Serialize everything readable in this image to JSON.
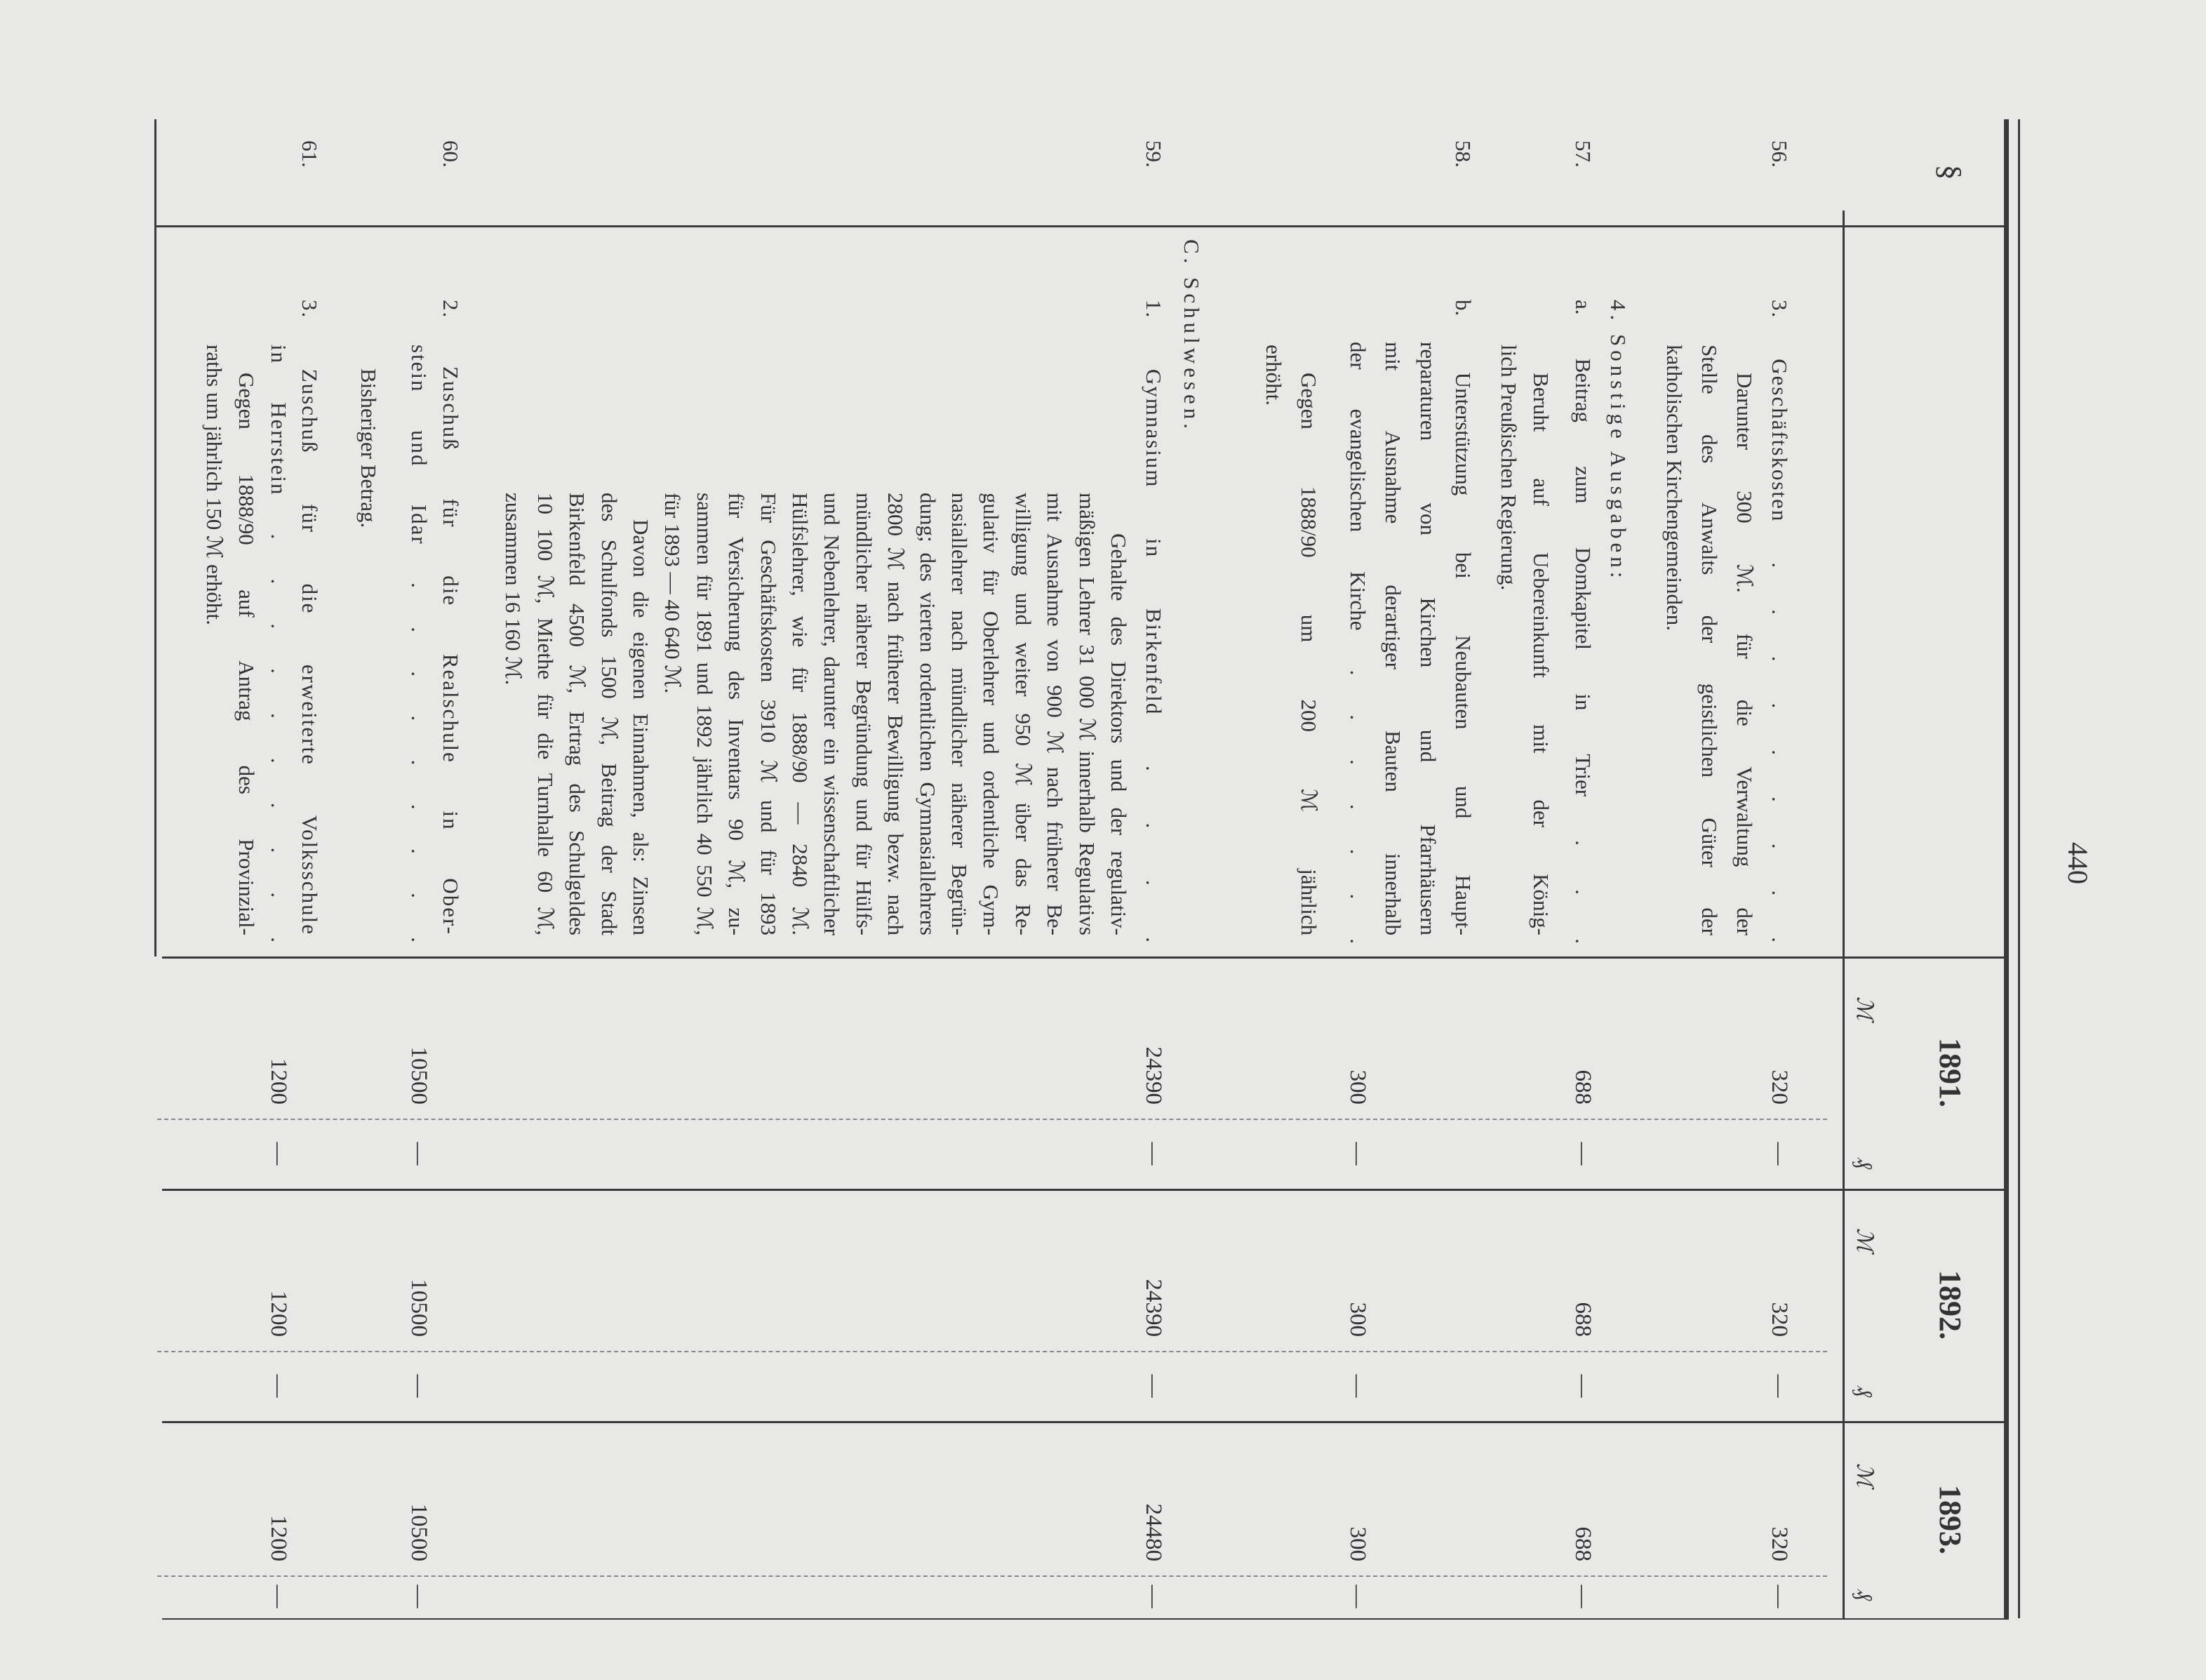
{
  "page_number": "440",
  "header": {
    "section_symbol": "§",
    "years": [
      "1891.",
      "1892.",
      "1893."
    ],
    "mark_symbol": "ℳ",
    "pfennig_symbol": "₰"
  },
  "entries": [
    {
      "section": "56.",
      "lines": [
        "3. Geschäftskosten . . . . . . . . .",
        "Darunter 300 ℳ. für die Verwaltung der",
        "Stelle des Anwalts der geistlichen Güter der",
        "katholischen Kirchengemeinden."
      ],
      "amounts": [
        "320",
        "—",
        "320",
        "—",
        "320",
        "—"
      ]
    },
    {
      "section": "",
      "lines": [
        "4. Sonstige Ausgaben:"
      ],
      "amounts": []
    },
    {
      "section": "57.",
      "lines": [
        "a. Beitrag zum Domkapitel in Trier . . .",
        "Beruht auf Uebereinkunft mit der König-",
        "lich Preußischen Regierung."
      ],
      "amounts": [
        "688",
        "—",
        "688",
        "—",
        "688",
        "—"
      ]
    },
    {
      "section": "58.",
      "lines": [
        "b. Unterstützung bei Neubauten und Haupt-",
        "reparaturen von Kirchen und Pfarrhäusern",
        "mit Ausnahme derartiger Bauten innerhalb",
        "der evangelischen Kirche . . . . . . .",
        "Gegen 1888/90 um 200 ℳ jährlich",
        "erhöht."
      ],
      "amounts": [
        "300",
        "—",
        "300",
        "—",
        "300",
        "—"
      ]
    },
    {
      "section": "",
      "lines": [
        "C. Schulwesen."
      ],
      "amounts": []
    },
    {
      "section": "59.",
      "lines": [
        "1. Gymnasium in Birkenfeld . . . .",
        "Gehalte des Direktors und der regulativ-",
        "mäßigen Lehrer 31 000 ℳ innerhalb Regulativs",
        "mit Ausnahme von 900 ℳ nach früherer Be-",
        "willigung und weiter 950 ℳ über das Re-",
        "gulativ für Oberlehrer und ordentliche Gym-",
        "nasiallehrer nach mündlicher näherer Begrün-",
        "dung; des vierten ordentlichen Gymnasiallehrers",
        "2800 ℳ nach früherer Bewilligung bezw. nach",
        "mündlicher näherer Begründung und für Hülfs-",
        "und Nebenlehrer, darunter ein wissenschaftlicher",
        "Hülfslehrer, wie für 1888/90 — 2840 ℳ.",
        "Für Geschäftskosten 3910 ℳ und für 1893",
        "für Versicherung des Inventars 90 ℳ, zu-",
        "sammen für 1891 und 1892 jährlich 40 550 ℳ,",
        "für 1893 — 40 640 ℳ.",
        "Davon die eigenen Einnahmen, als: Zinsen",
        "des Schulfonds 1500 ℳ, Beitrag der Stadt",
        "Birkenfeld 4500 ℳ, Ertrag des Schulgeldes",
        "10 100 ℳ, Miethe für die Turnhalle 60 ℳ,",
        "zusammen 16 160 ℳ."
      ],
      "amounts": [
        "24390",
        "—",
        "24390",
        "—",
        "24480",
        "—"
      ]
    },
    {
      "section": "60.",
      "lines": [
        "2. Zuschuß für die Realschule in Ober-",
        "stein und Idar . . . . . . . . .",
        "Bisheriger Betrag."
      ],
      "amounts": [
        "10500",
        "—",
        "10500",
        "—",
        "10500",
        "—"
      ]
    },
    {
      "section": "61.",
      "lines": [
        "3. Zuschuß für die erweiterte Volksschule",
        "in Herrstein . . . . . . . . . .",
        "Gegen 1888/90 auf Antrag des Provinzial-",
        "raths um jährlich 150 ℳ erhöht."
      ],
      "amounts": [
        "1200",
        "—",
        "1200",
        "—",
        "1200",
        "—"
      ]
    }
  ]
}
